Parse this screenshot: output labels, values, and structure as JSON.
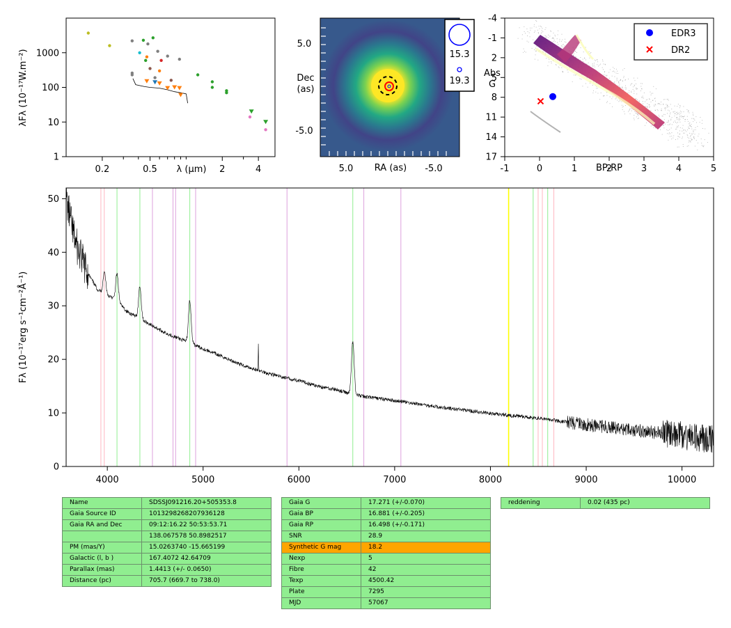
{
  "sed": {
    "xlabel": "λ (μm)",
    "ylabel": "λFλ (10⁻¹⁷W.m⁻²)",
    "xticks": [
      {
        "v": 0.2,
        "l": "0.2"
      },
      {
        "v": 0.5,
        "l": "0.5"
      },
      {
        "v": 2,
        "l": "2"
      },
      {
        "v": 4,
        "l": "4"
      }
    ],
    "yticks": [
      {
        "v": 1,
        "l": "1"
      },
      {
        "v": 10,
        "l": "10"
      },
      {
        "v": 100,
        "l": "100"
      },
      {
        "v": 1000,
        "l": "1000"
      }
    ]
  },
  "image": {
    "xlabel": "RA (as)",
    "ylabel1": "Dec",
    "ylabel2": "(as)",
    "xticks": [
      "5.0",
      "-5.0"
    ],
    "yticks": [
      "5.0",
      "-5.0"
    ],
    "legend": [
      "15.3",
      "19.3"
    ]
  },
  "hr": {
    "xlabel": "BP-RP",
    "ylabel1": "Abs",
    "ylabel2": "G",
    "xticks": [
      "-1",
      "0",
      "1",
      "2",
      "3",
      "4",
      "5"
    ],
    "yticks": [
      "-4",
      "-1",
      "2",
      "5",
      "8",
      "11",
      "14",
      "17"
    ],
    "legend": [
      {
        "label": "EDR3",
        "color": "#0000ff"
      },
      {
        "label": "DR2",
        "color": "#ff0000"
      }
    ]
  },
  "spectrum": {
    "ylabel": "Fλ (10⁻¹⁷erg s⁻¹cm⁻²Å⁻¹)",
    "xticks": [
      "4000",
      "5000",
      "6000",
      "7000",
      "8000",
      "9000",
      "10000"
    ],
    "yticks": [
      "0",
      "10",
      "20",
      "30",
      "40",
      "50"
    ]
  },
  "chart_data": [
    {
      "type": "scatter",
      "panel": "SED",
      "xlabel": "λ (μm)",
      "ylabel": "λFλ (10⁻¹⁷W.m⁻²)",
      "xscale": "log",
      "yscale": "log",
      "xlim": [
        0.1,
        5.5
      ],
      "ylim": [
        1,
        10000
      ],
      "points": [
        {
          "x": 0.153,
          "y": 3700,
          "color": "#bcbd22"
        },
        {
          "x": 0.23,
          "y": 1600,
          "color": "#bcbd22"
        },
        {
          "x": 0.355,
          "y": 2200,
          "color": "#7f7f7f"
        },
        {
          "x": 0.355,
          "y": 260,
          "color": "#7f7f7f"
        },
        {
          "x": 0.355,
          "y": 230,
          "color": "#7f7f7f"
        },
        {
          "x": 0.41,
          "y": 1000,
          "color": "#17becf"
        },
        {
          "x": 0.44,
          "y": 2300,
          "color": "#2ca02c"
        },
        {
          "x": 0.46,
          "y": 600,
          "color": "#2ca02c"
        },
        {
          "x": 0.47,
          "y": 760,
          "color": "#ff7f0e"
        },
        {
          "x": 0.48,
          "y": 1800,
          "color": "#7f7f7f"
        },
        {
          "x": 0.5,
          "y": 350,
          "color": "#8c564b"
        },
        {
          "x": 0.53,
          "y": 2700,
          "color": "#2ca02c"
        },
        {
          "x": 0.55,
          "y": 190,
          "color": "#7f7f7f"
        },
        {
          "x": 0.58,
          "y": 1100,
          "color": "#7f7f7f"
        },
        {
          "x": 0.6,
          "y": 300,
          "color": "#ff7f0e"
        },
        {
          "x": 0.62,
          "y": 600,
          "color": "#d62728"
        },
        {
          "x": 0.7,
          "y": 800,
          "color": "#7f7f7f"
        },
        {
          "x": 0.75,
          "y": 160,
          "color": "#8c564b"
        },
        {
          "x": 0.88,
          "y": 650,
          "color": "#7f7f7f"
        },
        {
          "x": 1.25,
          "y": 230,
          "color": "#2ca02c"
        },
        {
          "x": 1.65,
          "y": 145,
          "color": "#2ca02c"
        },
        {
          "x": 1.65,
          "y": 100,
          "color": "#2ca02c"
        },
        {
          "x": 2.17,
          "y": 80,
          "color": "#2ca02c"
        },
        {
          "x": 2.17,
          "y": 70,
          "color": "#2ca02c"
        },
        {
          "x": 3.4,
          "y": 14,
          "color": "#e377c2"
        },
        {
          "x": 4.6,
          "y": 6,
          "color": "#e377c2"
        }
      ],
      "triangles": [
        {
          "x": 0.47,
          "y": 150,
          "color": "#ff7f0e"
        },
        {
          "x": 0.55,
          "y": 140,
          "color": "#1f77b4"
        },
        {
          "x": 0.6,
          "y": 130,
          "color": "#ff7f0e"
        },
        {
          "x": 0.7,
          "y": 95,
          "color": "#ff7f0e"
        },
        {
          "x": 0.8,
          "y": 100,
          "color": "#ff7f0e"
        },
        {
          "x": 0.88,
          "y": 95,
          "color": "#ff7f0e"
        },
        {
          "x": 0.9,
          "y": 60,
          "color": "#ff7f0e"
        },
        {
          "x": 3.5,
          "y": 20,
          "color": "#2ca02c"
        },
        {
          "x": 4.6,
          "y": 10,
          "color": "#2ca02c"
        }
      ],
      "spectrum_line": [
        [
          0.36,
          180
        ],
        [
          0.38,
          120
        ],
        [
          0.45,
          105
        ],
        [
          0.5,
          100
        ],
        [
          0.6,
          95
        ],
        [
          0.7,
          85
        ],
        [
          0.8,
          75
        ],
        [
          0.9,
          70
        ],
        [
          1.0,
          65
        ],
        [
          1.03,
          35
        ]
      ]
    },
    {
      "type": "heatmap",
      "panel": "image",
      "xlabel": "RA (as)",
      "ylabel": "Dec (as)",
      "xlim": [
        8,
        -8
      ],
      "ylim": [
        -8,
        8
      ],
      "source_center": [
        0,
        0
      ],
      "legend_mags": [
        15.3,
        19.3
      ]
    },
    {
      "type": "scatter",
      "panel": "HR diagram",
      "xlabel": "BP-RP",
      "ylabel": "Abs G",
      "xlim": [
        -1,
        5
      ],
      "ylim": [
        17,
        -4
      ],
      "series": [
        {
          "name": "EDR3",
          "marker": "o",
          "color": "#0000ff",
          "x": [
            0.38
          ],
          "y": [
            7.9
          ]
        },
        {
          "name": "DR2",
          "marker": "x",
          "color": "#ff0000",
          "x": [
            0.03
          ],
          "y": [
            8.6
          ]
        }
      ]
    },
    {
      "type": "line",
      "panel": "spectrum",
      "ylabel": "Fλ (10⁻¹⁷erg s⁻¹cm⁻²Å⁻¹)",
      "xlim": [
        3570,
        10330
      ],
      "ylim": [
        0,
        52
      ],
      "continuum": [
        [
          3570,
          50
        ],
        [
          3650,
          43
        ],
        [
          3700,
          40
        ],
        [
          3800,
          36
        ],
        [
          3900,
          33
        ],
        [
          4000,
          32
        ],
        [
          4100,
          31
        ],
        [
          4200,
          29
        ],
        [
          4400,
          27
        ],
        [
          4600,
          25
        ],
        [
          4800,
          23.5
        ],
        [
          5000,
          22
        ],
        [
          5200,
          20.5
        ],
        [
          5400,
          19
        ],
        [
          5600,
          17.8
        ],
        [
          5800,
          16.8
        ],
        [
          6000,
          16
        ],
        [
          6200,
          15
        ],
        [
          6400,
          14.3
        ],
        [
          6550,
          13.5
        ],
        [
          6700,
          13
        ],
        [
          7000,
          12.3
        ],
        [
          7500,
          11
        ],
        [
          8000,
          9.9
        ],
        [
          8500,
          9
        ],
        [
          9000,
          7.8
        ],
        [
          9500,
          6.8
        ],
        [
          10000,
          5.8
        ],
        [
          10330,
          5
        ]
      ],
      "emission_lines": [
        {
          "x": 3970,
          "h": 4
        },
        {
          "x": 4101,
          "h": 5
        },
        {
          "x": 4340,
          "h": 6
        },
        {
          "x": 4861,
          "h": 8
        },
        {
          "x": 5577,
          "h": 5
        },
        {
          "x": 6563,
          "h": 10
        }
      ],
      "line_markers": [
        {
          "x": 3933,
          "color": "#ffb6c1"
        },
        {
          "x": 3968,
          "color": "#ffb6c1"
        },
        {
          "x": 4101,
          "color": "#90ee90"
        },
        {
          "x": 4340,
          "color": "#90ee90"
        },
        {
          "x": 4471,
          "color": "#dda0dd"
        },
        {
          "x": 4686,
          "color": "#dda0dd"
        },
        {
          "x": 4713,
          "color": "#dda0dd"
        },
        {
          "x": 4861,
          "color": "#90ee90"
        },
        {
          "x": 4922,
          "color": "#dda0dd"
        },
        {
          "x": 5876,
          "color": "#dda0dd"
        },
        {
          "x": 6563,
          "color": "#90ee90"
        },
        {
          "x": 6678,
          "color": "#dda0dd"
        },
        {
          "x": 7065,
          "color": "#dda0dd"
        },
        {
          "x": 8190,
          "color": "#ffff00"
        },
        {
          "x": 8446,
          "color": "#90ee90"
        },
        {
          "x": 8498,
          "color": "#ffb6c1"
        },
        {
          "x": 8542,
          "color": "#ffb6c1"
        },
        {
          "x": 8598,
          "color": "#90ee90"
        },
        {
          "x": 8662,
          "color": "#ffb6c1"
        }
      ]
    }
  ],
  "tables": {
    "t1": [
      [
        "Name",
        "SDSSJ091216.20+505353.8"
      ],
      [
        "Gaia Source ID",
        "1013298268207936128"
      ],
      [
        "Gaia RA and Dec",
        "09:12:16.22    50:53:53.71"
      ],
      [
        "",
        "138.067578    50.8982517"
      ],
      [
        "PM (mas/Y)",
        "15.0263740    -15.665199"
      ],
      [
        "Galactic (l, b )",
        "167.4072    42.64709"
      ],
      [
        "Parallax (mas)",
        "1.4413 (+/- 0.0650)"
      ],
      [
        "Distance (pc)",
        "705.7 (669.7 to 738.0)"
      ]
    ],
    "t2": [
      [
        "Gaia G",
        "17.271 (+/-0.070)"
      ],
      [
        "Gaia BP",
        "16.881 (+/-0.205)"
      ],
      [
        "Gaia RP",
        "16.498 (+/-0.171)"
      ],
      [
        "SNR",
        "28.9"
      ],
      [
        "Synthetic G mag",
        "18.2"
      ],
      [
        "Nexp",
        "5"
      ],
      [
        "Fibre",
        "42"
      ],
      [
        "Texp",
        "4500.42"
      ],
      [
        "Plate",
        "7295"
      ],
      [
        "MJD",
        "57067"
      ]
    ],
    "t3": [
      [
        "reddening",
        "0.02 (435 pc)"
      ]
    ]
  }
}
